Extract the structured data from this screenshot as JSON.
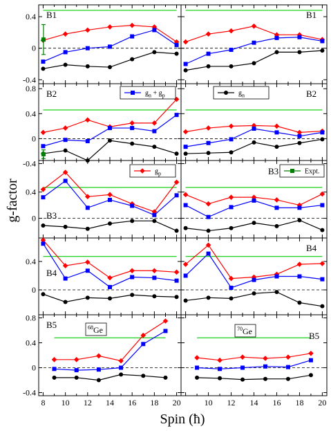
{
  "chart_data": {
    "type": "line",
    "ylabel": "g-factor",
    "xlabel": "Spin (ħ)",
    "x_ticks": [
      8,
      10,
      12,
      14,
      16,
      18,
      20
    ],
    "xlim": [
      7.6,
      20.4
    ],
    "colors": {
      "gn_gp": "#0000ff",
      "gn": "#000000",
      "gp": "#ff0000",
      "expt": "#008000",
      "green_line": "#00cc00"
    },
    "legend": [
      {
        "key": "gn_gp",
        "label": "gn + gp",
        "main": "g",
        "sub1": "n",
        "plus": " + g",
        "sub2": "p"
      },
      {
        "key": "gn",
        "label": "gn",
        "main": "g",
        "sub1": "n"
      },
      {
        "key": "gp",
        "label": "gp",
        "main": "g",
        "sub1": "p"
      },
      {
        "key": "expt",
        "label": "Expt.",
        "main": "Expt.",
        "sub1": ""
      }
    ],
    "nuclei": [
      {
        "label": "68Ge",
        "mass": "68",
        "element": "Ge"
      },
      {
        "label": "70Ge",
        "mass": "70",
        "element": "Ge"
      }
    ],
    "rows": [
      {
        "band": "B1",
        "ylim": [
          -0.45,
          0.55
        ],
        "yticks": [
          -0.4,
          0,
          0.4
        ],
        "ytick_labels": [
          "-0.4",
          "0",
          "0.4"
        ]
      },
      {
        "band": "B2",
        "ylim": [
          -0.35,
          0.88
        ],
        "yticks": [
          -0.4,
          0,
          0.4,
          0.8
        ],
        "ytick_labels": [
          "-0.4",
          "0",
          "0.4",
          "0.8"
        ]
      },
      {
        "band": "B3",
        "ylim": [
          -0.3,
          0.88
        ],
        "yticks": [
          0,
          0.4
        ],
        "ytick_labels": [
          "0",
          "0.4"
        ]
      },
      {
        "band": "B4",
        "ylim": [
          -0.35,
          0.73
        ],
        "yticks": [
          0,
          0.4
        ],
        "ytick_labels": [
          "0",
          "0.4"
        ]
      },
      {
        "band": "B5",
        "ylim": [
          -0.45,
          0.85
        ],
        "yticks": [
          -0.4,
          0,
          0.4,
          0.8
        ],
        "ytick_labels": [
          "-0.4",
          "0",
          "0.4",
          "0.8"
        ]
      }
    ],
    "panels": [
      {
        "nucleus": "68Ge",
        "band": "B1",
        "green_line": 0.48,
        "x": [
          8,
          10,
          12,
          14,
          16,
          18,
          20
        ],
        "series": [
          {
            "key": "gp",
            "values": [
              0.1,
              0.18,
              0.23,
              0.27,
              0.29,
              0.27,
              0.08
            ]
          },
          {
            "key": "gn_gp",
            "values": [
              -0.17,
              -0.05,
              0.0,
              0.02,
              0.15,
              0.23,
              0.04
            ]
          },
          {
            "key": "gn",
            "values": [
              -0.26,
              -0.21,
              -0.23,
              -0.24,
              -0.14,
              -0.05,
              -0.07
            ]
          }
        ],
        "expt": {
          "x": 8,
          "value": 0.11,
          "err": 0.19
        }
      },
      {
        "nucleus": "70Ge",
        "band": "B1",
        "green_line": 0.48,
        "x": [
          8,
          10,
          12,
          14,
          16,
          18,
          20
        ],
        "series": [
          {
            "key": "gp",
            "values": [
              0.08,
              0.18,
              0.22,
              0.28,
              0.17,
              0.17,
              0.11
            ]
          },
          {
            "key": "gn_gp",
            "values": [
              -0.2,
              -0.07,
              -0.02,
              0.07,
              0.13,
              0.14,
              0.09
            ]
          },
          {
            "key": "gn",
            "values": [
              -0.28,
              -0.23,
              -0.23,
              -0.19,
              -0.05,
              -0.05,
              -0.03
            ]
          }
        ]
      },
      {
        "nucleus": "68Ge",
        "band": "B2",
        "green_line": 0.46,
        "x": [
          8,
          10,
          12,
          14,
          16,
          18,
          20
        ],
        "series": [
          {
            "key": "gp",
            "values": [
              0.1,
              0.17,
              0.3,
              0.19,
              0.25,
              0.25,
              0.63
            ]
          },
          {
            "key": "gn_gp",
            "values": [
              -0.12,
              -0.02,
              -0.04,
              0.17,
              0.17,
              0.12,
              0.38
            ]
          },
          {
            "key": "gn",
            "values": [
              -0.24,
              -0.19,
              -0.35,
              -0.03,
              -0.08,
              -0.13,
              -0.24
            ]
          }
        ],
        "expt": {
          "x": 8,
          "value": -0.25,
          "err": 0.07
        }
      },
      {
        "nucleus": "70Ge",
        "band": "B2",
        "green_line": 0.46,
        "x": [
          8,
          10,
          12,
          14,
          16,
          18,
          20
        ],
        "series": [
          {
            "key": "gp",
            "values": [
              0.11,
              0.17,
              0.2,
              0.21,
              0.2,
              0.1,
              0.12
            ]
          },
          {
            "key": "gn_gp",
            "values": [
              -0.13,
              -0.07,
              -0.01,
              0.16,
              0.1,
              0.04,
              0.1
            ]
          },
          {
            "key": "gn",
            "values": [
              -0.24,
              -0.23,
              -0.22,
              -0.06,
              -0.13,
              -0.07,
              -0.01
            ]
          }
        ]
      },
      {
        "nucleus": "68Ge",
        "band": "B3",
        "green_line": 0.47,
        "x": [
          8,
          10,
          12,
          14,
          16,
          18,
          20
        ],
        "series": [
          {
            "key": "gp",
            "values": [
              0.44,
              0.7,
              0.33,
              0.36,
              0.22,
              0.1,
              0.55
            ]
          },
          {
            "key": "gn_gp",
            "values": [
              0.32,
              0.57,
              0.16,
              0.28,
              0.19,
              0.05,
              0.35
            ]
          },
          {
            "key": "gn",
            "values": [
              -0.11,
              -0.13,
              -0.16,
              -0.08,
              -0.04,
              -0.04,
              -0.19
            ]
          }
        ]
      },
      {
        "nucleus": "70Ge",
        "band": "B3",
        "green_line": 0.47,
        "x": [
          8,
          10,
          12,
          14,
          16,
          18,
          20
        ],
        "series": [
          {
            "key": "gp",
            "values": [
              0.36,
              0.22,
              0.32,
              0.32,
              0.28,
              0.2,
              0.37
            ]
          },
          {
            "key": "gn_gp",
            "values": [
              0.2,
              0.02,
              0.17,
              0.27,
              0.16,
              0.16,
              0.2
            ]
          },
          {
            "key": "gn",
            "values": [
              -0.15,
              -0.19,
              -0.15,
              -0.07,
              -0.12,
              -0.03,
              -0.18
            ]
          }
        ]
      },
      {
        "nucleus": "68Ge",
        "band": "B4",
        "green_line": 0.47,
        "x": [
          8,
          10,
          12,
          14,
          16,
          18,
          20
        ],
        "series": [
          {
            "key": "gp",
            "values": [
              0.7,
              0.34,
              0.39,
              0.17,
              0.27,
              0.27,
              0.25
            ]
          },
          {
            "key": "gn_gp",
            "values": [
              0.65,
              0.16,
              0.27,
              0.04,
              0.18,
              0.17,
              0.13
            ]
          },
          {
            "key": "gn",
            "values": [
              -0.06,
              -0.17,
              -0.11,
              -0.12,
              -0.07,
              -0.09,
              -0.1
            ]
          }
        ]
      },
      {
        "nucleus": "70Ge",
        "band": "B4",
        "green_line": 0.47,
        "x": [
          8,
          10,
          12,
          14,
          16,
          18,
          20
        ],
        "series": [
          {
            "key": "gp",
            "values": [
              0.36,
              0.63,
              0.16,
              0.18,
              0.22,
              0.36,
              0.37
            ]
          },
          {
            "key": "gn_gp",
            "values": [
              0.2,
              0.51,
              0.03,
              0.14,
              0.19,
              0.19,
              0.15
            ]
          },
          {
            "key": "gn",
            "values": [
              -0.15,
              -0.11,
              -0.12,
              -0.05,
              -0.03,
              -0.18,
              -0.23
            ]
          }
        ]
      },
      {
        "nucleus": "68Ge",
        "band": "B5",
        "green_line": 0.48,
        "x": [
          9,
          11,
          13,
          15,
          17,
          19
        ],
        "series": [
          {
            "key": "gp",
            "values": [
              0.13,
              0.13,
              0.19,
              0.11,
              0.52,
              0.75
            ]
          },
          {
            "key": "gn_gp",
            "values": [
              -0.02,
              -0.04,
              -0.03,
              0.0,
              0.38,
              0.59
            ]
          },
          {
            "key": "gn",
            "values": [
              -0.16,
              -0.16,
              -0.2,
              -0.11,
              -0.13,
              -0.16
            ]
          }
        ]
      },
      {
        "nucleus": "70Ge",
        "band": "B5",
        "green_line": 0.48,
        "x": [
          9,
          11,
          13,
          15,
          17,
          19
        ],
        "series": [
          {
            "key": "gp",
            "values": [
              0.16,
              0.12,
              0.17,
              0.15,
              0.17,
              0.23
            ]
          },
          {
            "key": "gn_gp",
            "values": [
              0.0,
              -0.02,
              0.0,
              0.02,
              0.01,
              0.12
            ]
          },
          {
            "key": "gn",
            "values": [
              -0.16,
              -0.17,
              -0.19,
              -0.18,
              -0.18,
              -0.12
            ]
          }
        ]
      }
    ]
  }
}
